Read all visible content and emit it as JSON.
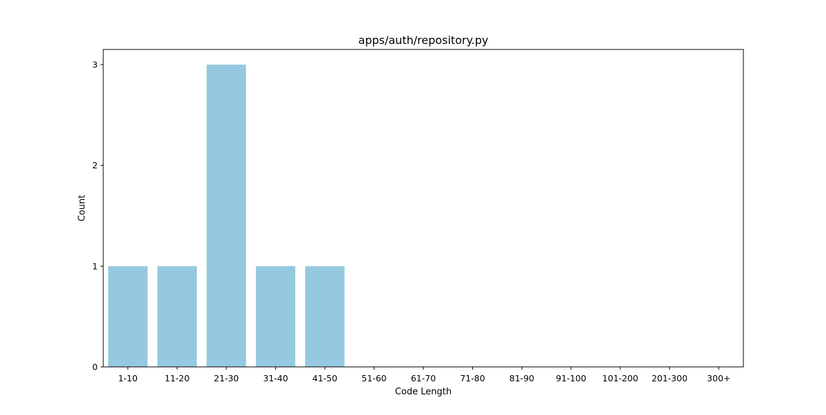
{
  "chart_data": {
    "type": "bar",
    "title": "apps/auth/repository.py",
    "xlabel": "Code Length",
    "ylabel": "Count",
    "categories": [
      "1-10",
      "11-20",
      "21-30",
      "31-40",
      "41-50",
      "51-60",
      "61-70",
      "71-80",
      "81-90",
      "91-100",
      "101-200",
      "201-300",
      "300+"
    ],
    "values": [
      1,
      1,
      3,
      1,
      1,
      0,
      0,
      0,
      0,
      0,
      0,
      0,
      0
    ],
    "ylim": [
      0,
      3.15
    ],
    "yticks": [
      0,
      1,
      2,
      3
    ],
    "grid": false,
    "legend": "none",
    "bar_color": "#95c9df"
  }
}
